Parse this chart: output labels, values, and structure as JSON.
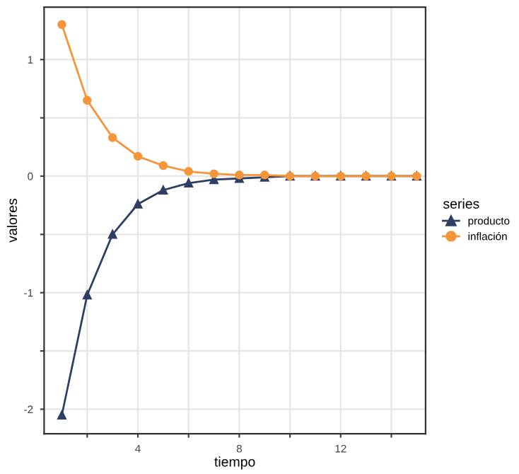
{
  "chart_data": {
    "type": "line",
    "xlabel": "tiempo",
    "ylabel": "valores",
    "legend_title": "series",
    "legend": "right",
    "grid": true,
    "line_style": "solid",
    "x": [
      1,
      2,
      3,
      4,
      5,
      6,
      7,
      8,
      9,
      10,
      11,
      12,
      13,
      14,
      15
    ],
    "xlim": [
      0.3,
      15.35
    ],
    "ylim": [
      -2.21,
      1.45
    ],
    "xticks": [
      {
        "value": 2,
        "label": null
      },
      4,
      {
        "value": 6,
        "label": null
      },
      8,
      {
        "value": 10,
        "label": null
      },
      12,
      {
        "value": 14,
        "label": null
      }
    ],
    "yticks": [
      -2,
      {
        "value": -1.5,
        "label": null
      },
      -1,
      {
        "value": -0.5,
        "label": null
      },
      0,
      {
        "value": 0.5,
        "label": null
      },
      1
    ],
    "series": [
      {
        "name": "producto",
        "color": "#2e3f63",
        "marker": "triangle",
        "values": [
          -2.05,
          -1.02,
          -0.5,
          -0.24,
          -0.12,
          -0.06,
          -0.03,
          -0.02,
          -0.01,
          0,
          0,
          0,
          0,
          0,
          0
        ]
      },
      {
        "name": "inflación",
        "color": "#f5953a",
        "marker": "circle",
        "values": [
          1.3,
          0.65,
          0.33,
          0.17,
          0.09,
          0.04,
          0.02,
          0.01,
          0.01,
          0,
          0,
          0,
          0,
          0,
          0
        ]
      }
    ]
  }
}
